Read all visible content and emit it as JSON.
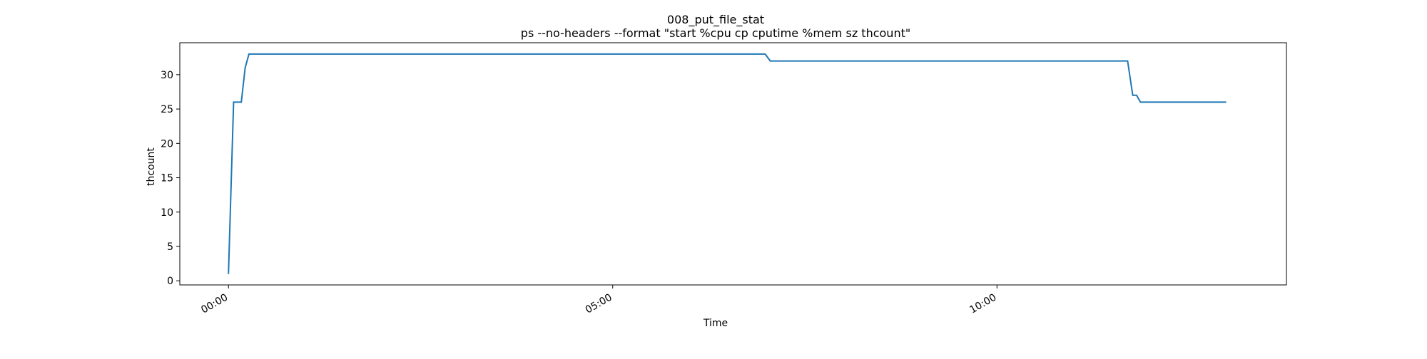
{
  "chart_data": {
    "type": "line",
    "title": "008_put_file_stat",
    "subtitle": "ps --no-headers --format \"start %cpu cp cputime %mem sz thcount\"",
    "xlabel": "Time",
    "ylabel": "thcount",
    "xlim": [
      "-00:38",
      "13:46"
    ],
    "ylim": [
      -0.6,
      34.65
    ],
    "x_ticks": [
      "00:00",
      "05:00",
      "10:00"
    ],
    "y_ticks": [
      0,
      5,
      10,
      15,
      20,
      25,
      30
    ],
    "grid": false,
    "legend": "none",
    "colors": {
      "line": "#1f77b4",
      "axes": "#000000",
      "background": "#ffffff"
    },
    "series": [
      {
        "x": [
          "00:00",
          "00:04",
          "00:07",
          "00:10",
          "00:13",
          "00:16",
          "00:20",
          "06:59",
          "07:03",
          "11:42",
          "11:46",
          "11:49",
          "11:52",
          "12:59"
        ],
        "values": [
          1,
          26,
          26,
          26,
          31,
          33,
          33,
          33,
          32,
          32,
          27,
          27,
          26,
          26
        ]
      }
    ]
  }
}
